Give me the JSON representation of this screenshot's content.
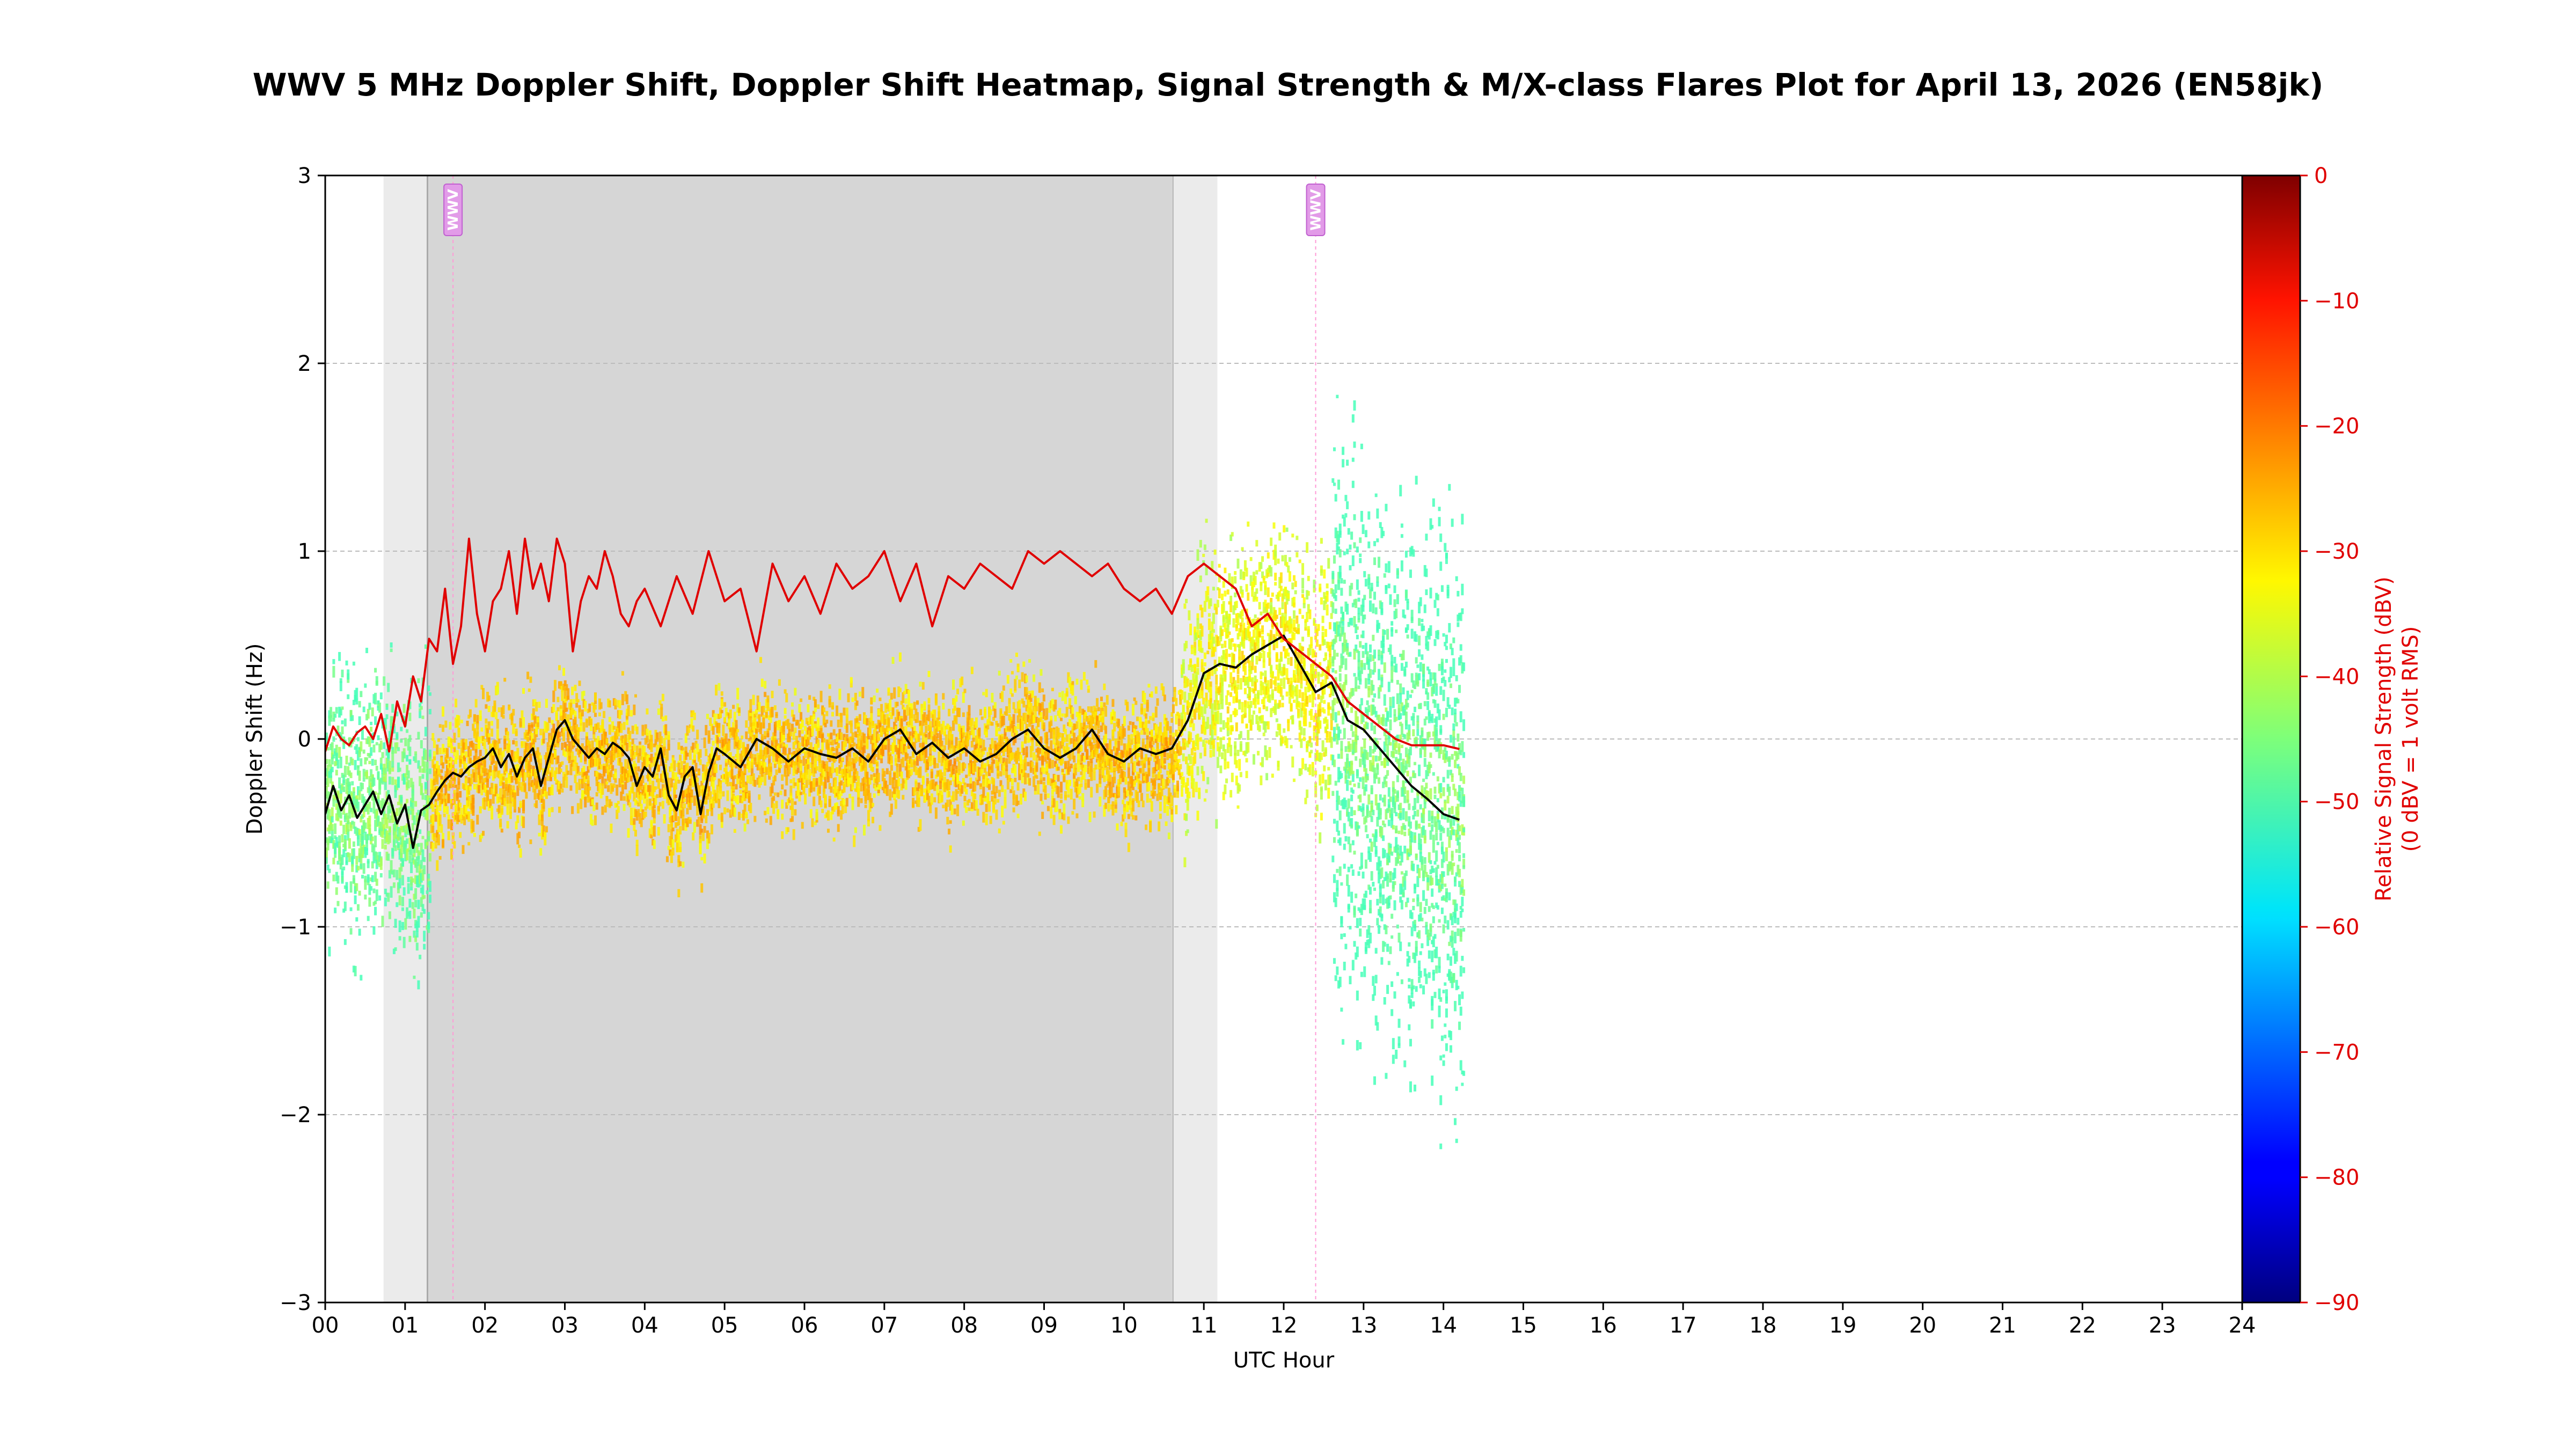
{
  "chart_data": {
    "type": "line",
    "title": "WWV 5 MHz Doppler Shift, Doppler Shift Heatmap, Signal Strength & M/X-class Flares Plot for April 13, 2026 (EN58jk)",
    "xlabel": "UTC Hour",
    "ylabel": "Doppler Shift (Hz)",
    "xlim": [
      0,
      24
    ],
    "ylim": [
      -3,
      3
    ],
    "x_ticks": [
      "00",
      "01",
      "02",
      "03",
      "04",
      "05",
      "06",
      "07",
      "08",
      "09",
      "10",
      "11",
      "12",
      "13",
      "14",
      "15",
      "16",
      "17",
      "18",
      "19",
      "20",
      "21",
      "22",
      "23",
      "24"
    ],
    "y_ticks": [
      "3",
      "2",
      "1",
      "0",
      "−1",
      "−2",
      "−3"
    ],
    "grid": true,
    "colorbar": {
      "label_line1": "Relative Signal Strength (dBV)",
      "label_line2": "(0 dBV = 1 volt RMS)",
      "range": [
        -90,
        0
      ],
      "ticks": [
        "0",
        "−10",
        "−20",
        "−30",
        "−40",
        "−50",
        "−60",
        "−70",
        "−80",
        "−90"
      ],
      "colormap": "jet",
      "color": "#e00000"
    },
    "shading": [
      {
        "type": "twilight",
        "start": 0.73,
        "end": 1.28,
        "color": "#ebebeb"
      },
      {
        "type": "night",
        "start": 1.28,
        "end": 10.62,
        "color": "#d6d6d6"
      },
      {
        "type": "twilight",
        "start": 10.62,
        "end": 11.17,
        "color": "#ebebeb"
      }
    ],
    "markers": [
      {
        "label": "WWV",
        "x": 1.6
      },
      {
        "label": "WWV",
        "x": 12.4
      }
    ],
    "series": [
      {
        "color": "#000000",
        "role": "doppler",
        "x": [
          0.0,
          0.1,
          0.2,
          0.3,
          0.4,
          0.5,
          0.6,
          0.7,
          0.8,
          0.9,
          1.0,
          1.1,
          1.2,
          1.3,
          1.4,
          1.5,
          1.6,
          1.7,
          1.8,
          1.9,
          2.0,
          2.1,
          2.2,
          2.3,
          2.4,
          2.5,
          2.6,
          2.7,
          2.8,
          2.9,
          3.0,
          3.1,
          3.2,
          3.3,
          3.4,
          3.5,
          3.6,
          3.7,
          3.8,
          3.9,
          4.0,
          4.1,
          4.2,
          4.3,
          4.4,
          4.5,
          4.6,
          4.7,
          4.8,
          4.9,
          5.0,
          5.2,
          5.4,
          5.6,
          5.8,
          6.0,
          6.2,
          6.4,
          6.6,
          6.8,
          7.0,
          7.2,
          7.4,
          7.6,
          7.8,
          8.0,
          8.2,
          8.4,
          8.6,
          8.8,
          9.0,
          9.2,
          9.4,
          9.6,
          9.8,
          10.0,
          10.2,
          10.4,
          10.6,
          10.8,
          11.0,
          11.2,
          11.4,
          11.6,
          11.8,
          12.0,
          12.2,
          12.4,
          12.6,
          12.8,
          13.0,
          13.2,
          13.4,
          13.6,
          13.8,
          14.0,
          14.2
        ],
        "values": [
          -0.4,
          -0.25,
          -0.38,
          -0.3,
          -0.42,
          -0.35,
          -0.28,
          -0.4,
          -0.3,
          -0.45,
          -0.35,
          -0.58,
          -0.38,
          -0.35,
          -0.28,
          -0.22,
          -0.18,
          -0.2,
          -0.15,
          -0.12,
          -0.1,
          -0.05,
          -0.15,
          -0.08,
          -0.2,
          -0.1,
          -0.05,
          -0.25,
          -0.1,
          0.05,
          0.1,
          0.0,
          -0.05,
          -0.1,
          -0.05,
          -0.08,
          -0.02,
          -0.05,
          -0.1,
          -0.25,
          -0.15,
          -0.2,
          -0.05,
          -0.3,
          -0.38,
          -0.2,
          -0.15,
          -0.4,
          -0.18,
          -0.05,
          -0.08,
          -0.15,
          0.0,
          -0.05,
          -0.12,
          -0.05,
          -0.08,
          -0.1,
          -0.05,
          -0.12,
          0.0,
          0.05,
          -0.08,
          -0.02,
          -0.1,
          -0.05,
          -0.12,
          -0.08,
          0.0,
          0.05,
          -0.05,
          -0.1,
          -0.05,
          0.05,
          -0.08,
          -0.12,
          -0.05,
          -0.08,
          -0.05,
          0.1,
          0.35,
          0.4,
          0.38,
          0.45,
          0.5,
          0.55,
          0.4,
          0.25,
          0.3,
          0.1,
          0.05,
          -0.05,
          -0.15,
          -0.25,
          -0.32,
          -0.4,
          -0.43
        ]
      },
      {
        "color": "#e00000",
        "role": "signal_strength_dBV",
        "x": [
          0.0,
          0.1,
          0.2,
          0.3,
          0.4,
          0.5,
          0.6,
          0.7,
          0.8,
          0.9,
          1.0,
          1.1,
          1.2,
          1.3,
          1.4,
          1.5,
          1.6,
          1.7,
          1.8,
          1.9,
          2.0,
          2.1,
          2.2,
          2.3,
          2.4,
          2.5,
          2.6,
          2.7,
          2.8,
          2.9,
          3.0,
          3.1,
          3.2,
          3.3,
          3.4,
          3.5,
          3.6,
          3.7,
          3.8,
          3.9,
          4.0,
          4.2,
          4.4,
          4.6,
          4.8,
          5.0,
          5.2,
          5.4,
          5.6,
          5.8,
          6.0,
          6.2,
          6.4,
          6.6,
          6.8,
          7.0,
          7.2,
          7.4,
          7.6,
          7.8,
          8.0,
          8.2,
          8.4,
          8.6,
          8.8,
          9.0,
          9.2,
          9.4,
          9.6,
          9.8,
          10.0,
          10.2,
          10.4,
          10.6,
          10.8,
          11.0,
          11.2,
          11.4,
          11.6,
          11.8,
          12.0,
          12.2,
          12.4,
          12.6,
          12.8,
          13.0,
          13.2,
          13.4,
          13.6,
          13.8,
          14.0,
          14.2
        ],
        "values": [
          -46,
          -44,
          -45,
          -45.5,
          -44.5,
          -44,
          -45,
          -43,
          -46,
          -42,
          -44,
          -40,
          -42,
          -37,
          -38,
          -33,
          -39,
          -36,
          -29,
          -35,
          -38,
          -34,
          -33,
          -30,
          -35,
          -29,
          -33,
          -31,
          -34,
          -29,
          -31,
          -38,
          -34,
          -32,
          -33,
          -30,
          -32,
          -35,
          -36,
          -34,
          -33,
          -36,
          -32,
          -35,
          -30,
          -34,
          -33,
          -38,
          -31,
          -34,
          -32,
          -35,
          -31,
          -33,
          -32,
          -30,
          -34,
          -31,
          -36,
          -32,
          -33,
          -31,
          -32,
          -33,
          -30,
          -31,
          -30,
          -31,
          -32,
          -31,
          -33,
          -34,
          -33,
          -35,
          -32,
          -31,
          -32,
          -33,
          -36,
          -35,
          -37,
          -38,
          -39,
          -40,
          -42,
          -43,
          -44,
          -45,
          -45.5,
          -45.5,
          -45.5,
          -45.8
        ]
      }
    ],
    "heatmap_note_color_range_dBV": [
      -50,
      -20
    ]
  }
}
